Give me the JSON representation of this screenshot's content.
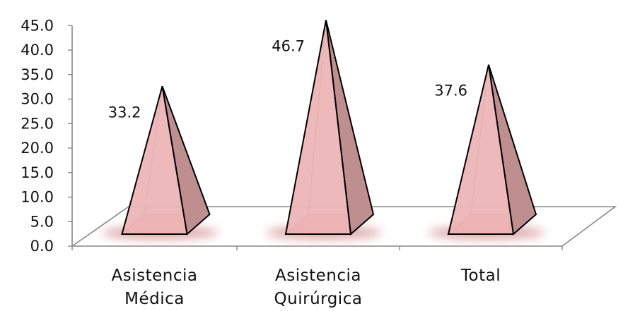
{
  "chart_data": {
    "type": "bar",
    "mark": "3d-pyramid",
    "title": "",
    "xlabel": "",
    "ylabel": "",
    "categories": [
      [
        "Asistencia",
        "Médica"
      ],
      [
        "Asistencia",
        "Quirúrgica"
      ],
      [
        "Total"
      ]
    ],
    "values": [
      33.2,
      46.7,
      37.6
    ],
    "data_labels": [
      "33.2",
      "46.7",
      "37.6"
    ],
    "ylim": [
      0,
      45
    ],
    "yticks": [
      "0.0",
      "5.0",
      "10.0",
      "15.0",
      "20.0",
      "25.0",
      "30.0",
      "35.0",
      "40.0",
      "45.0"
    ],
    "grid": false,
    "legend": "none",
    "colors": {
      "front_face": "#edb3b4",
      "side_face": "#bf8f90",
      "outline": "#000000",
      "floor_line": "#888888",
      "shadow": "#b23b3b"
    }
  }
}
